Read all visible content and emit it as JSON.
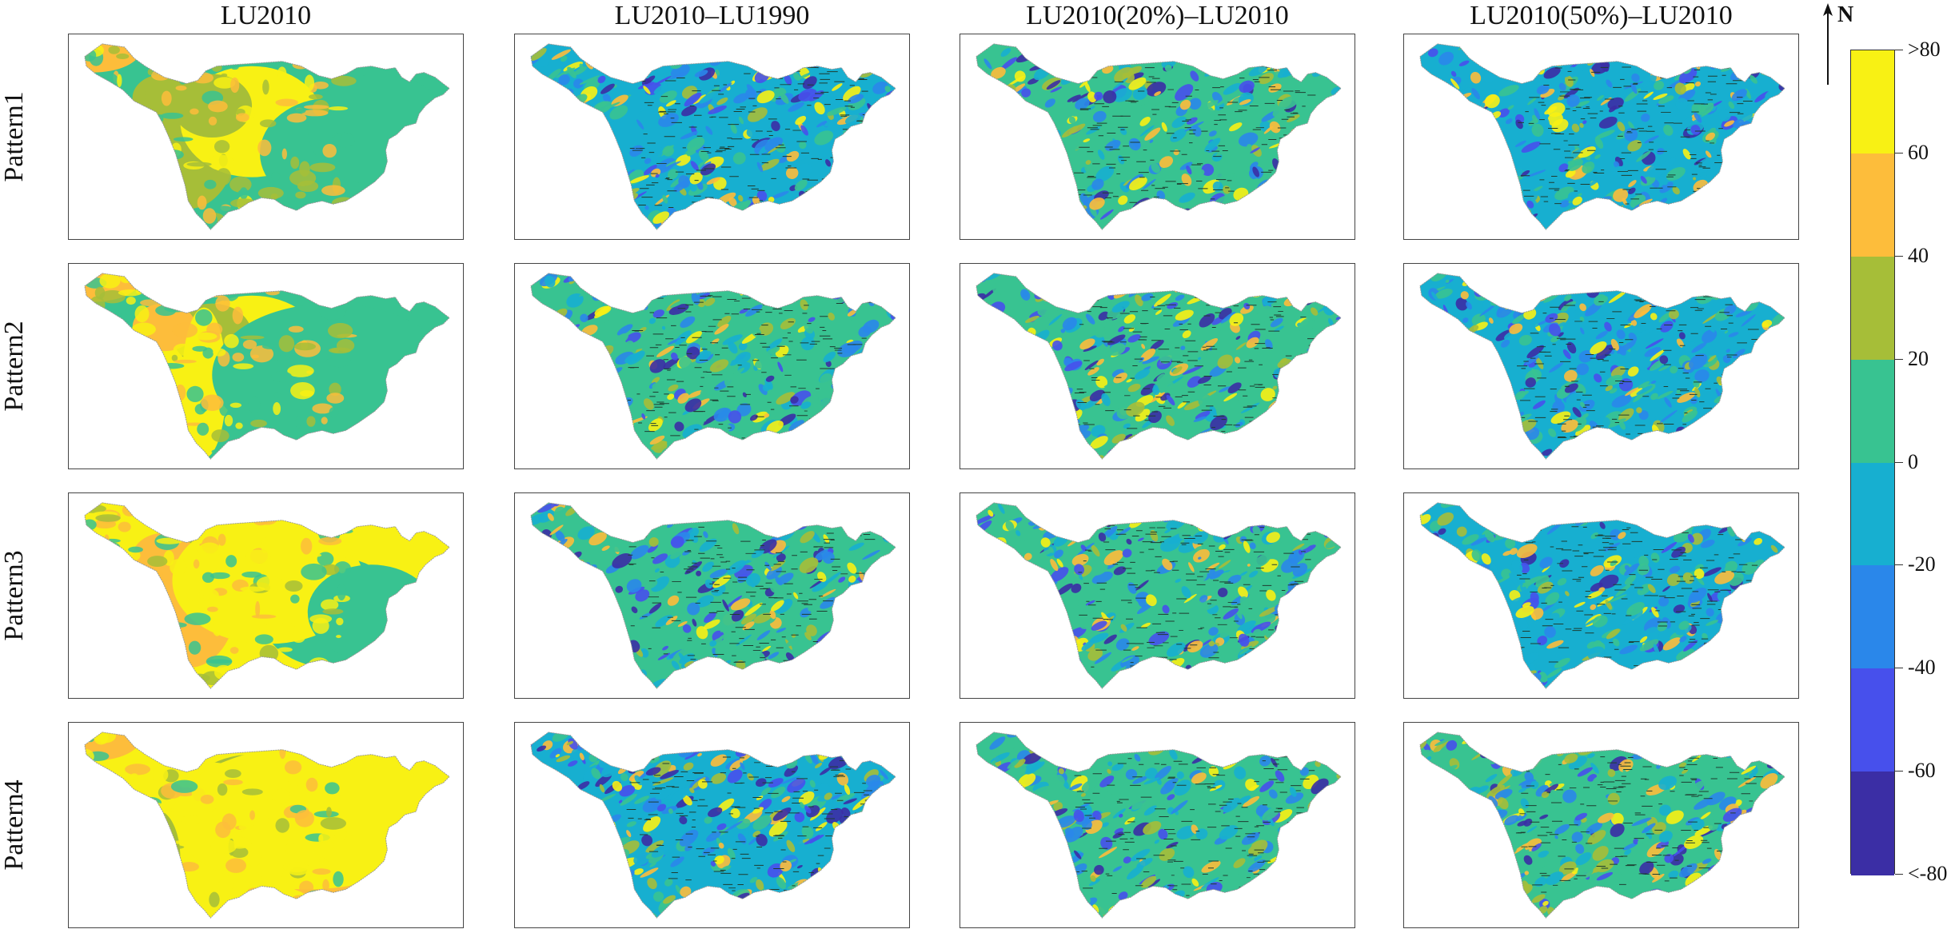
{
  "figure": {
    "column_titles": [
      "LU2010",
      "LU2010–LU1990",
      "LU2010(20%)–LU2010",
      "LU2010(50%)–LU2010"
    ],
    "row_labels": [
      "Pattern1",
      "Pattern2",
      "Pattern3",
      "Pattern4"
    ],
    "north_label": "N"
  },
  "legend": {
    "labels": [
      ">80",
      "60",
      "40",
      "20",
      "0",
      "-20",
      "-40",
      "-60",
      "<-80"
    ],
    "colors": [
      "#f8f114",
      "#fdbd3b",
      "#a6be38",
      "#38c391",
      "#17afd0",
      "#2a87ea",
      "#4750ec",
      "#3b2ea5"
    ]
  },
  "map_colors": {
    "yellow": "#f8f114",
    "orange": "#fdbd3b",
    "olive": "#a6be38",
    "green": "#38c391",
    "cyan": "#17afd0",
    "blue": "#2a87ea",
    "violet": "#4750ec",
    "indigo": "#3b2ea5",
    "hatch": "#1e3c30"
  }
}
